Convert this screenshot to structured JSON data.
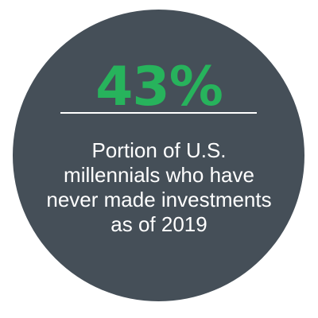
{
  "stat": {
    "value": "43%",
    "color": "#27b35c"
  },
  "caption": {
    "lines": [
      "Portion of U.S.",
      "millennials who have",
      "never made investments",
      "as of 2019"
    ]
  },
  "colors": {
    "circle": "#454f58",
    "text": "#ffffff",
    "rule": "#ffffff",
    "background": "#ffffff"
  }
}
